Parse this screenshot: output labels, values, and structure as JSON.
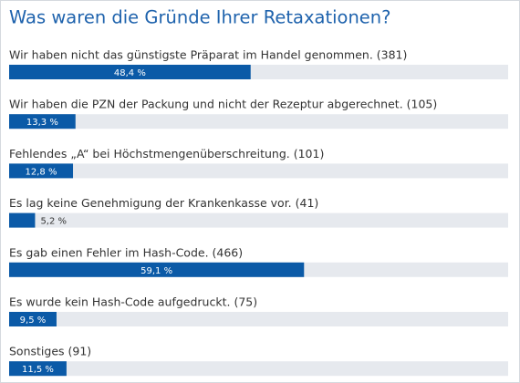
{
  "chart_data": {
    "type": "bar",
    "orientation": "horizontal",
    "title": "Was waren die Gründe Ihrer Retaxationen?",
    "categories": [
      "Wir haben nicht das günstigste Präparat im Handel genommen. (381)",
      "Wir haben die PZN der Packung und nicht der Rezeptur abgerechnet. (105)",
      "Fehlendes „A“ bei Höchstmengenüberschreitung. (101)",
      "Es lag keine Genehmigung der Krankenkasse vor. (41)",
      "Es gab einen Fehler im Hash-Code. (466)",
      "Es wurde kein Hash-Code aufgedruckt. (75)",
      "Sonstiges (91)"
    ],
    "values": [
      48.4,
      13.3,
      12.8,
      5.2,
      59.1,
      9.5,
      11.5
    ],
    "value_labels": [
      "48,4 %",
      "13,3 %",
      "12,8 %",
      "5,2 %",
      "59,1 %",
      "9,5 %",
      "11,5 %"
    ],
    "xlim": [
      0,
      100
    ],
    "color": "#0b5aa7",
    "track_color": "#e6e9ee"
  }
}
